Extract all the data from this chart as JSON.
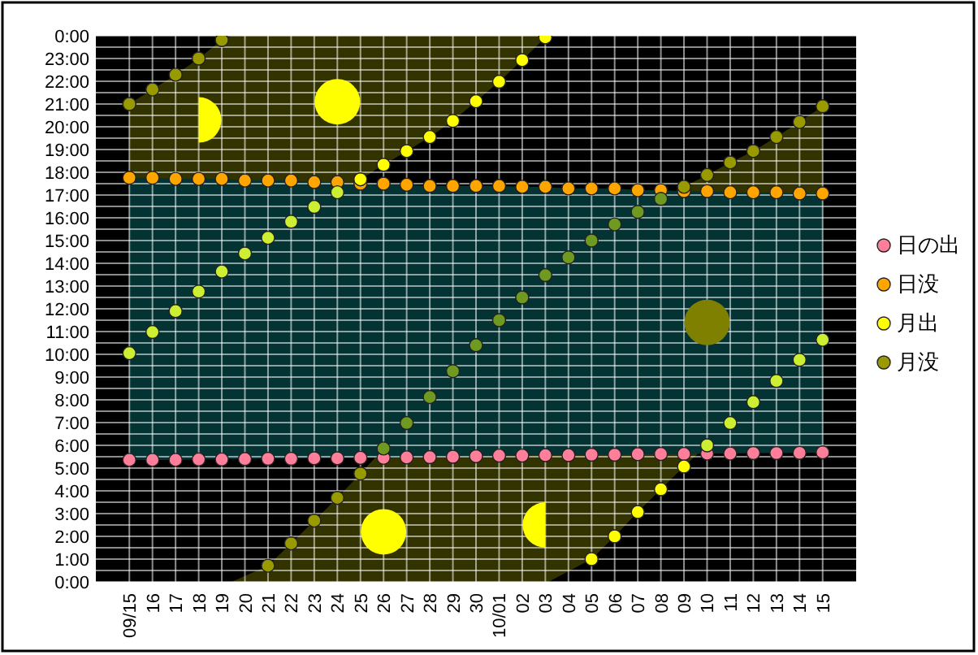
{
  "chart_data": {
    "type": "scatter",
    "marker": "circle",
    "grid": true,
    "legend": "right",
    "categories": [
      "09/15",
      "16",
      "17",
      "18",
      "19",
      "20",
      "21",
      "22",
      "23",
      "24",
      "25",
      "26",
      "27",
      "28",
      "29",
      "30",
      "10/01",
      "02",
      "03",
      "04",
      "05",
      "06",
      "07",
      "08",
      "09",
      "10",
      "11",
      "12",
      "13",
      "14",
      "15"
    ],
    "ylim": [
      0,
      24
    ],
    "yticks": [
      {
        "value": 0,
        "label": "0:00"
      },
      {
        "value": 1,
        "label": "1:00"
      },
      {
        "value": 2,
        "label": "2:00"
      },
      {
        "value": 3,
        "label": "3:00"
      },
      {
        "value": 4,
        "label": "4:00"
      },
      {
        "value": 5,
        "label": "5:00"
      },
      {
        "value": 6,
        "label": "6:00"
      },
      {
        "value": 7,
        "label": "7:00"
      },
      {
        "value": 8,
        "label": "8:00"
      },
      {
        "value": 9,
        "label": "9:00"
      },
      {
        "value": 10,
        "label": "10:00"
      },
      {
        "value": 11,
        "label": "11:00"
      },
      {
        "value": 12,
        "label": "12:00"
      },
      {
        "value": 13,
        "label": "13:00"
      },
      {
        "value": 14,
        "label": "14:00"
      },
      {
        "value": 15,
        "label": "15:00"
      },
      {
        "value": 16,
        "label": "16:00"
      },
      {
        "value": 17,
        "label": "17:00"
      },
      {
        "value": 18,
        "label": "18:00"
      },
      {
        "value": 19,
        "label": "19:00"
      },
      {
        "value": 20,
        "label": "20:00"
      },
      {
        "value": 21,
        "label": "21:00"
      },
      {
        "value": 22,
        "label": "22:00"
      },
      {
        "value": 23,
        "label": "23:00"
      },
      {
        "value": 24,
        "label": "0:00"
      }
    ],
    "series": [
      {
        "name": "日の出",
        "color": "#ff7f9a",
        "values": [
          5.36,
          5.36,
          5.36,
          5.38,
          5.38,
          5.4,
          5.41,
          5.41,
          5.43,
          5.43,
          5.45,
          5.45,
          5.47,
          5.48,
          5.5,
          5.52,
          5.55,
          5.55,
          5.57,
          5.57,
          5.59,
          5.59,
          5.61,
          5.62,
          5.62,
          5.64,
          5.64,
          5.66,
          5.66,
          5.67,
          5.69
        ]
      },
      {
        "name": "日没",
        "color": "#ffa500",
        "values": [
          17.76,
          17.76,
          17.71,
          17.71,
          17.71,
          17.64,
          17.64,
          17.64,
          17.57,
          17.57,
          17.5,
          17.5,
          17.45,
          17.4,
          17.4,
          17.4,
          17.4,
          17.36,
          17.36,
          17.29,
          17.29,
          17.29,
          17.21,
          17.21,
          17.17,
          17.17,
          17.12,
          17.12,
          17.12,
          17.07,
          17.07
        ]
      },
      {
        "name": "月出",
        "color": "#ffff00",
        "values": [
          10.05,
          10.98,
          11.9,
          12.76,
          13.64,
          14.43,
          15.12,
          15.83,
          16.48,
          17.12,
          17.69,
          18.33,
          18.93,
          19.55,
          20.26,
          21.12,
          21.98,
          22.93,
          23.93,
          null,
          1.0,
          2.0,
          3.07,
          4.07,
          5.07,
          6.0,
          6.98,
          7.9,
          8.83,
          9.76,
          10.64
        ],
        "colors": [
          "#ccee33",
          "#ccee33",
          "#ccee33",
          "#ccee33",
          "#ccee33",
          "#ccee33",
          "#ccee33",
          "#ccee33",
          "#ccee33",
          "#ccee33",
          "#ffff00",
          "#ffff00",
          "#ffff00",
          "#ffff00",
          "#ffff00",
          "#ffff00",
          "#ffff00",
          "#ffff00",
          "#ffff00",
          null,
          "#ffff00",
          "#ffff00",
          "#ffff00",
          "#ffff00",
          "#ffff00",
          "#ccee33",
          "#ccee33",
          "#ccee33",
          "#ccee33",
          "#ccee33",
          "#ccee33"
        ]
      },
      {
        "name": "月没",
        "color": "#999900",
        "values": [
          21.0,
          21.64,
          22.29,
          23.0,
          23.81,
          null,
          0.71,
          1.69,
          2.69,
          3.69,
          4.76,
          5.86,
          6.98,
          8.12,
          9.26,
          10.4,
          11.5,
          12.5,
          13.48,
          14.26,
          15.0,
          15.71,
          16.26,
          16.83,
          17.36,
          17.88,
          18.43,
          18.93,
          19.55,
          20.21,
          20.9
        ],
        "colors": [
          "#999900",
          "#999900",
          "#999900",
          "#999900",
          "#999900",
          null,
          "#999900",
          "#999900",
          "#999900",
          "#999900",
          "#999900",
          "#6e9a22",
          "#6e9a22",
          "#6e9a22",
          "#6e9a22",
          "#6e9a22",
          "#6e9a22",
          "#6e9a22",
          "#6e9a22",
          "#6e9a22",
          "#6e9a22",
          "#6e9a22",
          "#6e9a22",
          "#6e9a22",
          "#999900",
          "#999900",
          "#999900",
          "#999900",
          "#999900",
          "#999900",
          "#999900"
        ]
      }
    ]
  }
}
